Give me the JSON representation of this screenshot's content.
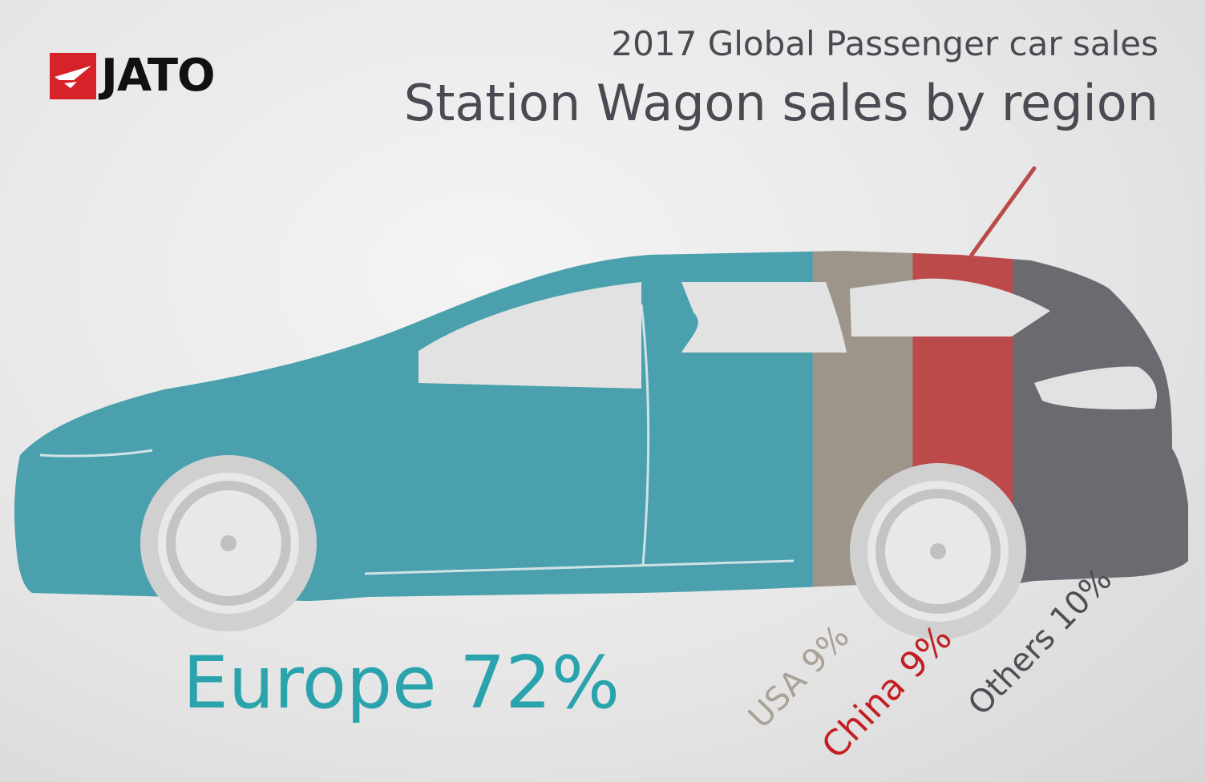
{
  "header": {
    "logo_text": "JATO",
    "subtitle": "2017 Global Passenger car sales",
    "title": "Station Wagon sales by region"
  },
  "colors": {
    "europe": "#4aa0ad",
    "usa": "#9e958a",
    "china": "#bd4a4a",
    "others": "#6a6a70",
    "logo_red": "#d62228"
  },
  "chart_data": {
    "type": "bar",
    "title": "Station Wagon sales by region",
    "subtitle": "2017 Global Passenger car sales",
    "categories": [
      "Europe",
      "USA",
      "China",
      "Others"
    ],
    "values": [
      72,
      9,
      9,
      10
    ],
    "labels": [
      "Europe 72%",
      "USA 9%",
      "China 9%",
      "Others 10%"
    ],
    "unit": "%"
  }
}
